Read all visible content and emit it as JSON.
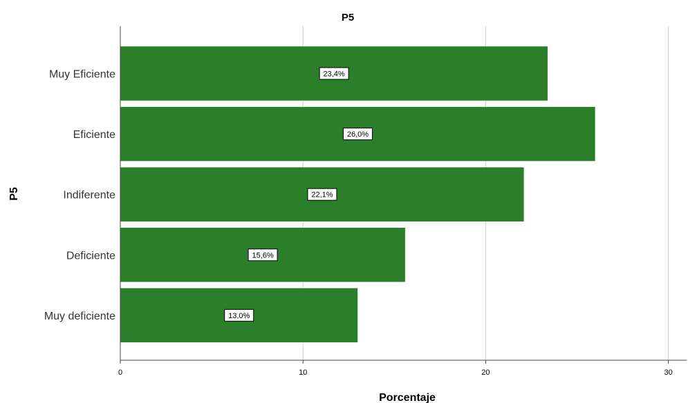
{
  "chart_data": {
    "type": "bar",
    "orientation": "horizontal",
    "title": "P5",
    "xlabel": "Porcentaje",
    "ylabel": "P5",
    "categories": [
      "Muy Eficiente",
      "Eficiente",
      "Indiferente",
      "Deficiente",
      "Muy deficiente"
    ],
    "values": [
      23.4,
      26.0,
      22.1,
      15.6,
      13.0
    ],
    "data_labels": [
      "23,4%",
      "26,0%",
      "22,1%",
      "15,6%",
      "13,0%"
    ],
    "xlim": [
      0,
      31
    ],
    "xticks": [
      0,
      10,
      20,
      30
    ],
    "xtick_labels": [
      "0",
      "10",
      "20",
      "30"
    ],
    "grid": "vertical",
    "bar_color": "#2b7f2b",
    "legend": "none"
  }
}
